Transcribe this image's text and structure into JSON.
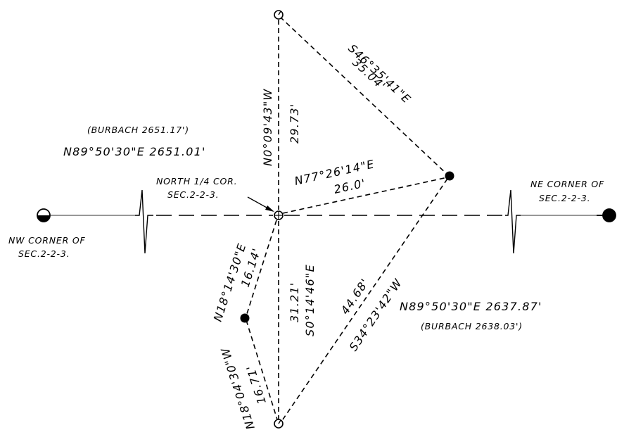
{
  "labels": {
    "burbach_west": "(BURBACH 2651.17')",
    "bearing_west": "N89°50'30\"E 2651.01'",
    "north_quarter_1": "NORTH 1/4 COR.",
    "north_quarter_2": "SEC.2-2-3.",
    "nw_corner_1": "NW CORNER OF",
    "nw_corner_2": "SEC.2-2-3.",
    "ne_corner_1": "NE CORNER OF",
    "ne_corner_2": "SEC.2-2-3.",
    "bearing_east": "N89°50'30\"E 2637.87'",
    "burbach_east": "(BURBACH 2638.03')",
    "top_bearing": "N0°09'43\"W",
    "top_distance": "29.73'",
    "ne_tie_bearing": "S46°35'41\"E",
    "ne_tie_distance": "35.04'",
    "east_tie_bearing": "N77°26'14\"E",
    "east_tie_distance": "26.0'",
    "south_bearing": "S0°14'46\"E",
    "south_distance": "31.21'",
    "se_tie_bearing": "S34°23'42\"W",
    "se_tie_distance": "44.68'",
    "sw_upper_bearing": "N18°14'30\"E",
    "sw_upper_distance": "16.14'",
    "sw_lower_bearing": "N18°04'30\"W",
    "sw_lower_distance": "16.71'"
  }
}
